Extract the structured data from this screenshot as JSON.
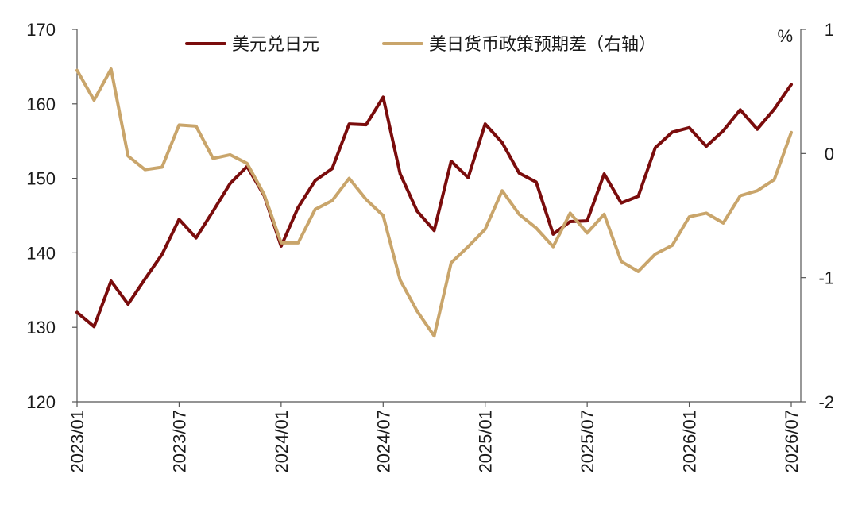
{
  "chart_data": {
    "type": "line",
    "x": [
      "2023/01",
      "2023/02",
      "2023/03",
      "2023/04",
      "2023/05",
      "2023/06",
      "2023/07",
      "2023/08",
      "2023/09",
      "2023/10",
      "2023/11",
      "2023/12",
      "2024/01",
      "2024/02",
      "2024/03",
      "2024/04",
      "2024/05",
      "2024/06",
      "2024/07",
      "2024/08",
      "2024/09",
      "2024/10",
      "2024/11",
      "2024/12",
      "2025/01",
      "2025/02",
      "2025/03",
      "2025/04",
      "2025/05",
      "2025/06",
      "2025/07",
      "2025/08",
      "2025/09",
      "2025/10",
      "2025/11",
      "2025/12",
      "2026/01",
      "2026/02",
      "2026/03",
      "2026/04",
      "2026/05",
      "2026/06",
      "2026/07"
    ],
    "x_tick_labels": [
      "2023/01",
      "2023/07",
      "2024/01",
      "2024/07",
      "2025/01",
      "2025/07",
      "2026/01",
      "2026/07"
    ],
    "series": [
      {
        "name": "美元兑日元",
        "axis": "left",
        "color": "#7a0c0c",
        "values": [
          132.0,
          130.1,
          136.2,
          133.1,
          136.5,
          139.8,
          144.5,
          142.0,
          145.6,
          149.3,
          151.6,
          147.7,
          140.9,
          146.1,
          149.7,
          151.3,
          157.3,
          157.2,
          160.9,
          150.6,
          145.6,
          143.0,
          152.3,
          150.1,
          157.3,
          154.8,
          150.7,
          149.5,
          142.5,
          144.2,
          144.3,
          150.6,
          146.7,
          147.6,
          154.1,
          156.2,
          156.8,
          154.3,
          156.4,
          159.2,
          156.6,
          159.3,
          162.6
        ]
      },
      {
        "name": "美日货币政策预期差（右轴）",
        "axis": "right",
        "color": "#c9a56b",
        "values": [
          0.67,
          0.43,
          0.68,
          -0.02,
          -0.13,
          -0.11,
          0.23,
          0.22,
          -0.04,
          -0.01,
          -0.08,
          -0.33,
          -0.72,
          -0.72,
          -0.45,
          -0.38,
          -0.2,
          -0.37,
          -0.5,
          -1.02,
          -1.27,
          -1.47,
          -0.88,
          -0.75,
          -0.61,
          -0.3,
          -0.49,
          -0.6,
          -0.75,
          -0.48,
          -0.64,
          -0.49,
          -0.87,
          -0.95,
          -0.81,
          -0.74,
          -0.51,
          -0.48,
          -0.56,
          -0.34,
          -0.3,
          -0.21,
          0.17
        ]
      }
    ],
    "y_left": {
      "min": 120,
      "max": 170,
      "ticks": [
        120,
        130,
        140,
        150,
        160,
        170
      ]
    },
    "y_right": {
      "min": -2,
      "max": 1,
      "ticks": [
        -2,
        -1,
        0,
        1
      ],
      "unit": "%"
    },
    "legend": "top",
    "grid": false
  }
}
